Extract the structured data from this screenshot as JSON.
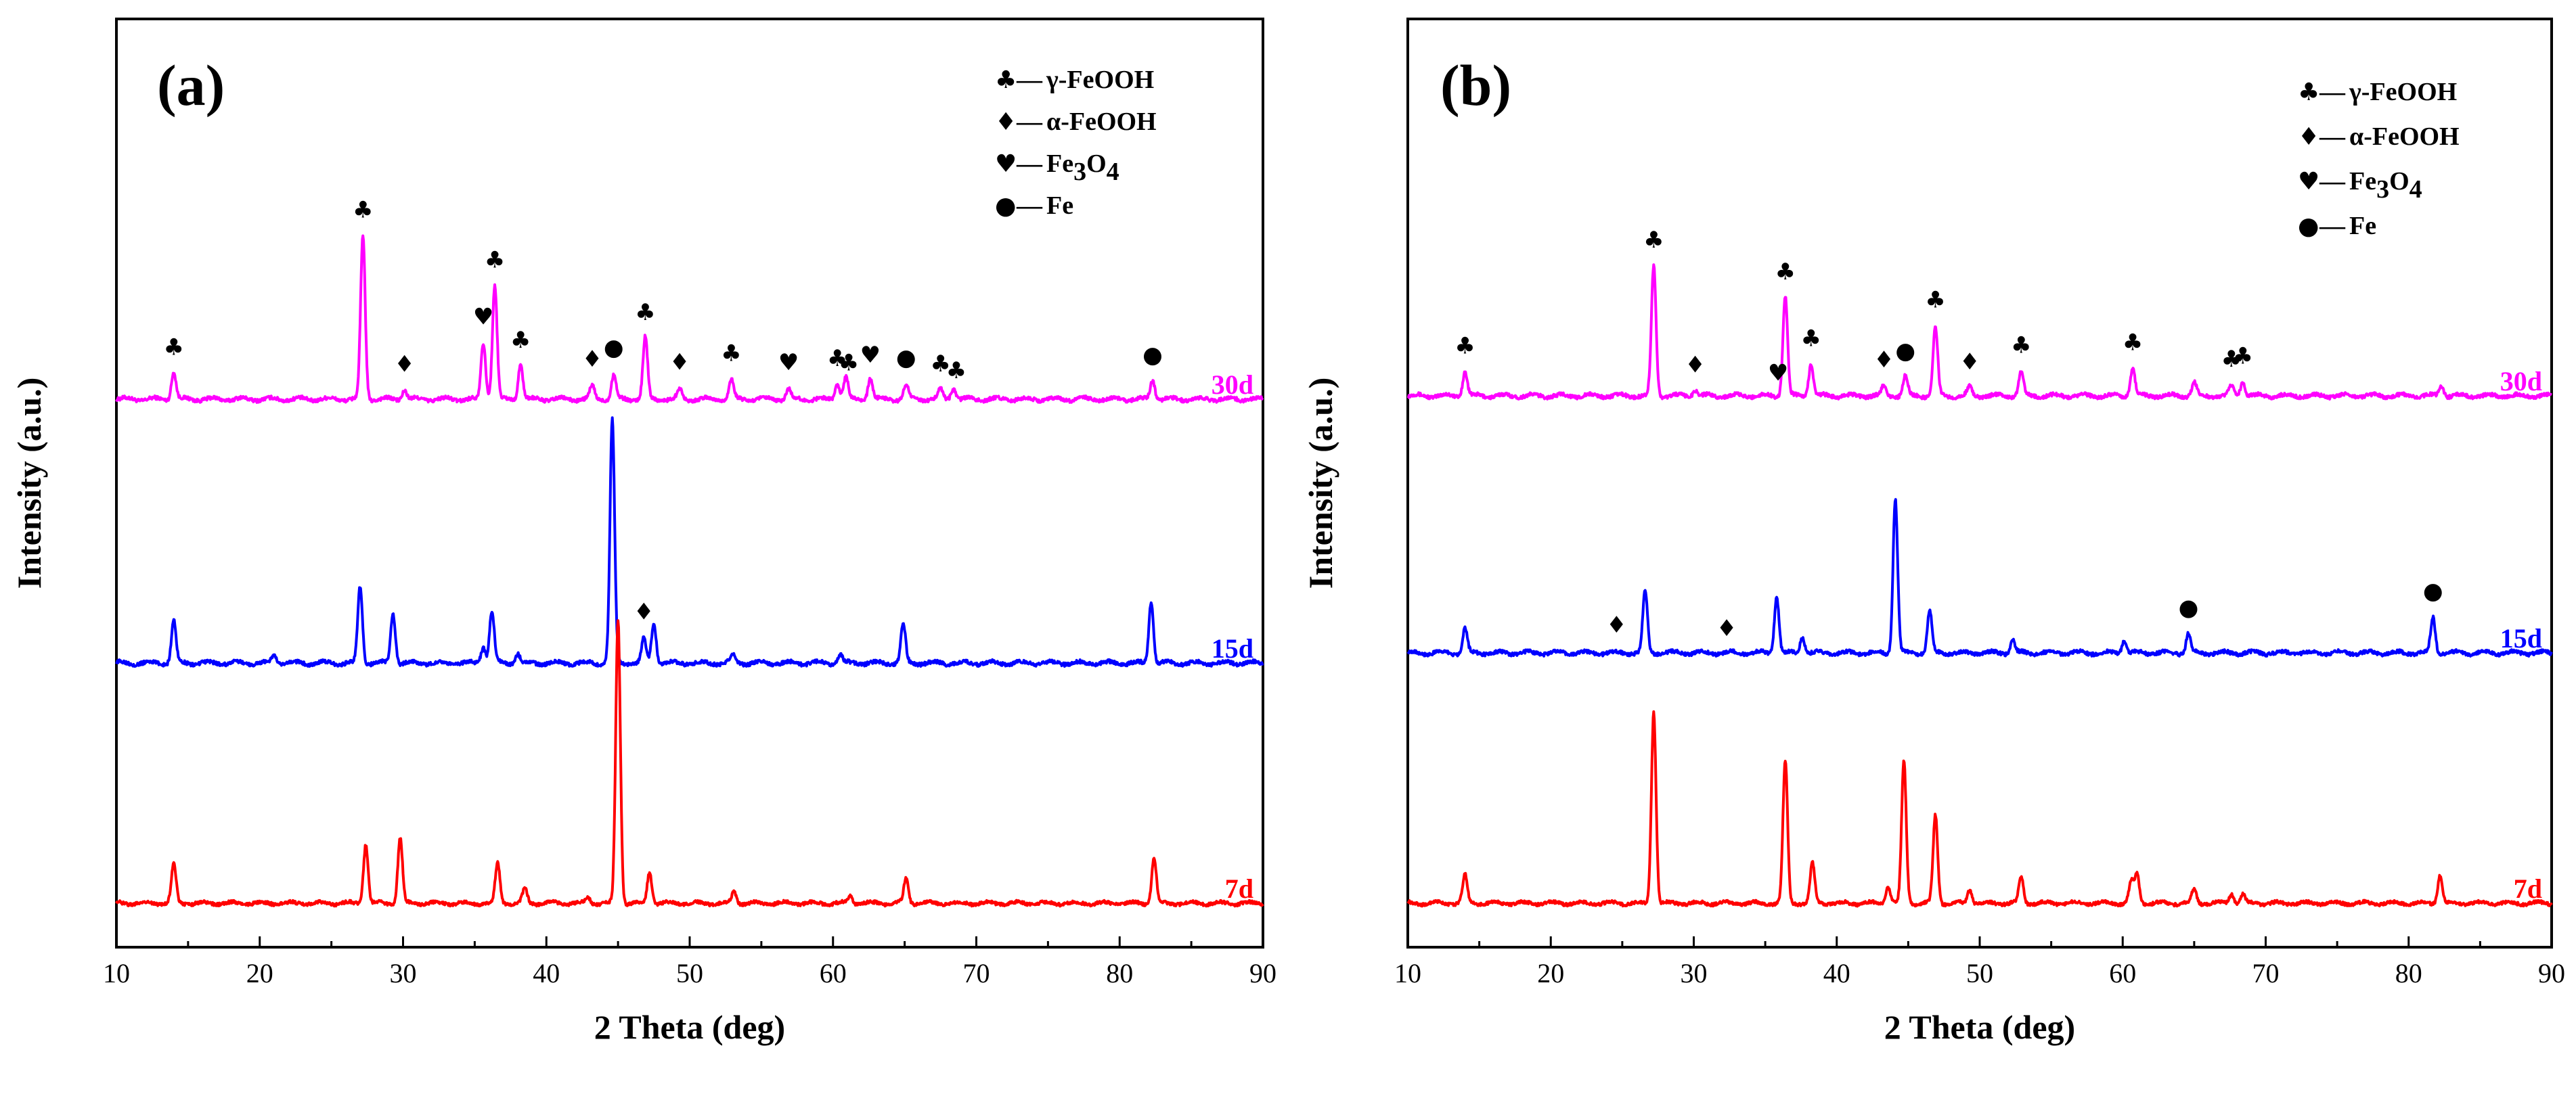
{
  "figure": {
    "legend_symbols": {
      "gamma_FeOOH": "♣",
      "alpha_FeOOH": "♦",
      "Fe3O4": "♥",
      "Fe": "●"
    }
  },
  "chart_data": [
    {
      "panel_label": "(a)",
      "type": "line",
      "xlabel": "2 Theta (deg)",
      "ylabel": "Intensity (a.u.)",
      "xlim": [
        10,
        90
      ],
      "xticks": [
        10,
        20,
        30,
        40,
        50,
        60,
        70,
        80,
        90
      ],
      "grid": false,
      "legend": {
        "placement": "top-right",
        "entries": [
          {
            "symbol": "♣",
            "dash": "—",
            "text": "γ-FeOOH"
          },
          {
            "symbol": "♦",
            "dash": "—",
            "text": "α-FeOOH"
          },
          {
            "symbol": "♥",
            "dash": "—",
            "text": "Fe",
            "sub1": "3",
            "mid": "O",
            "sub2": "4"
          },
          {
            "symbol": "●",
            "dash": "—",
            "text": "Fe"
          }
        ]
      },
      "series": [
        {
          "name": "30d",
          "color": "#ff00ff",
          "baseline": 0.0,
          "peaks": [
            [
              14.0,
              0.17
            ],
            [
              27.2,
              1.0
            ],
            [
              30.1,
              0.06
            ],
            [
              35.6,
              0.35
            ],
            [
              36.4,
              0.7
            ],
            [
              38.2,
              0.22
            ],
            [
              43.2,
              0.08
            ],
            [
              44.7,
              0.15
            ],
            [
              46.9,
              0.38
            ],
            [
              49.3,
              0.06
            ],
            [
              52.9,
              0.12
            ],
            [
              56.9,
              0.06
            ],
            [
              60.3,
              0.1
            ],
            [
              60.9,
              0.14
            ],
            [
              62.6,
              0.13
            ],
            [
              65.1,
              0.09
            ],
            [
              67.5,
              0.06
            ],
            [
              68.4,
              0.07
            ],
            [
              82.3,
              0.12
            ]
          ],
          "markers": [
            [
              14.0,
              "♣"
            ],
            [
              27.2,
              "♣"
            ],
            [
              30.1,
              "♦"
            ],
            [
              35.6,
              "♥"
            ],
            [
              36.4,
              "♣"
            ],
            [
              38.2,
              "♣"
            ],
            [
              43.2,
              "♦"
            ],
            [
              44.7,
              "●"
            ],
            [
              46.9,
              "♣"
            ],
            [
              49.3,
              "♦"
            ],
            [
              52.9,
              "♣"
            ],
            [
              56.9,
              "♥"
            ],
            [
              60.3,
              "♣"
            ],
            [
              61.1,
              "♣"
            ],
            [
              62.6,
              "♥"
            ],
            [
              65.1,
              "●"
            ],
            [
              67.5,
              "♣"
            ],
            [
              68.6,
              "♣"
            ],
            [
              82.3,
              "●"
            ]
          ]
        },
        {
          "name": "15d",
          "color": "#0000ff",
          "baseline": 0.0,
          "peaks": [
            [
              14.0,
              0.26
            ],
            [
              21.0,
              0.05
            ],
            [
              27.0,
              0.47
            ],
            [
              29.3,
              0.31
            ],
            [
              35.6,
              0.1
            ],
            [
              36.2,
              0.32
            ],
            [
              38.0,
              0.06
            ],
            [
              44.6,
              1.5
            ],
            [
              46.8,
              0.15
            ],
            [
              47.5,
              0.25
            ],
            [
              53.0,
              0.05
            ],
            [
              60.5,
              0.05
            ],
            [
              64.9,
              0.24
            ],
            [
              82.2,
              0.38
            ]
          ],
          "markers": [
            [
              46.8,
              "♦"
            ]
          ]
        },
        {
          "name": "7d",
          "color": "#ff0000",
          "baseline": 0.0,
          "peaks": [
            [
              14.0,
              0.28
            ],
            [
              27.4,
              0.42
            ],
            [
              29.8,
              0.46
            ],
            [
              36.6,
              0.28
            ],
            [
              38.5,
              0.1
            ],
            [
              42.9,
              0.04
            ],
            [
              45.0,
              2.0
            ],
            [
              47.2,
              0.22
            ],
            [
              53.1,
              0.08
            ],
            [
              61.2,
              0.05
            ],
            [
              65.1,
              0.17
            ],
            [
              82.4,
              0.32
            ]
          ],
          "markers": []
        }
      ]
    },
    {
      "panel_label": "(b)",
      "type": "line",
      "xlabel": "2 Theta (deg)",
      "ylabel": "Intensity (a.u.)",
      "xlim": [
        10,
        90
      ],
      "xticks": [
        10,
        20,
        30,
        40,
        50,
        60,
        70,
        80,
        90
      ],
      "grid": false,
      "legend": {
        "placement": "top-right",
        "entries": [
          {
            "symbol": "♣",
            "dash": "—",
            "text": "γ-FeOOH"
          },
          {
            "symbol": "♦",
            "dash": "—",
            "text": "α-FeOOH"
          },
          {
            "symbol": "♥",
            "dash": "—",
            "text": "Fe",
            "sub1": "3",
            "mid": "O",
            "sub2": "4"
          },
          {
            "symbol": "●",
            "dash": "—",
            "text": "Fe"
          }
        ]
      },
      "series": [
        {
          "name": "30d",
          "color": "#ff00ff",
          "baseline": 0.0,
          "peaks": [
            [
              14.0,
              0.15
            ],
            [
              27.2,
              0.8
            ],
            [
              30.1,
              0.04
            ],
            [
              36.4,
              0.62
            ],
            [
              38.2,
              0.2
            ],
            [
              43.3,
              0.06
            ],
            [
              44.8,
              0.12
            ],
            [
              46.9,
              0.42
            ],
            [
              49.3,
              0.05
            ],
            [
              52.9,
              0.15
            ],
            [
              60.7,
              0.17
            ],
            [
              65.0,
              0.08
            ],
            [
              67.6,
              0.06
            ],
            [
              68.4,
              0.09
            ],
            [
              82.3,
              0.06
            ]
          ],
          "markers": [
            [
              14.0,
              "♣"
            ],
            [
              27.2,
              "♣"
            ],
            [
              30.1,
              "♦"
            ],
            [
              35.9,
              "♥"
            ],
            [
              36.4,
              "♣"
            ],
            [
              38.2,
              "♣"
            ],
            [
              43.3,
              "♦"
            ],
            [
              44.8,
              "●"
            ],
            [
              46.9,
              "♣"
            ],
            [
              49.3,
              "♦"
            ],
            [
              52.9,
              "♣"
            ],
            [
              60.7,
              "♣"
            ],
            [
              67.6,
              "♣"
            ],
            [
              68.4,
              "♣"
            ]
          ]
        },
        {
          "name": "15d",
          "color": "#0000ff",
          "baseline": 0.0,
          "peaks": [
            [
              14.0,
              0.15
            ],
            [
              26.6,
              0.38
            ],
            [
              35.8,
              0.35
            ],
            [
              37.6,
              0.1
            ],
            [
              44.1,
              0.95
            ],
            [
              46.5,
              0.26
            ],
            [
              52.3,
              0.08
            ],
            [
              60.1,
              0.08
            ],
            [
              64.6,
              0.12
            ],
            [
              81.7,
              0.22
            ]
          ],
          "markers": [
            [
              24.6,
              "♦"
            ],
            [
              32.3,
              "♦"
            ],
            [
              64.6,
              "●"
            ],
            [
              81.7,
              "●"
            ]
          ]
        },
        {
          "name": "7d",
          "color": "#ff0000",
          "baseline": 0.0,
          "peaks": [
            [
              14.0,
              0.2
            ],
            [
              27.2,
              1.35
            ],
            [
              36.4,
              1.0
            ],
            [
              38.3,
              0.28
            ],
            [
              43.6,
              0.12
            ],
            [
              44.7,
              1.0
            ],
            [
              46.9,
              0.62
            ],
            [
              49.3,
              0.1
            ],
            [
              52.9,
              0.18
            ],
            [
              60.6,
              0.15
            ],
            [
              61.0,
              0.2
            ],
            [
              65.0,
              0.1
            ],
            [
              67.6,
              0.07
            ],
            [
              68.4,
              0.06
            ],
            [
              82.2,
              0.2
            ]
          ],
          "markers": []
        }
      ]
    }
  ]
}
